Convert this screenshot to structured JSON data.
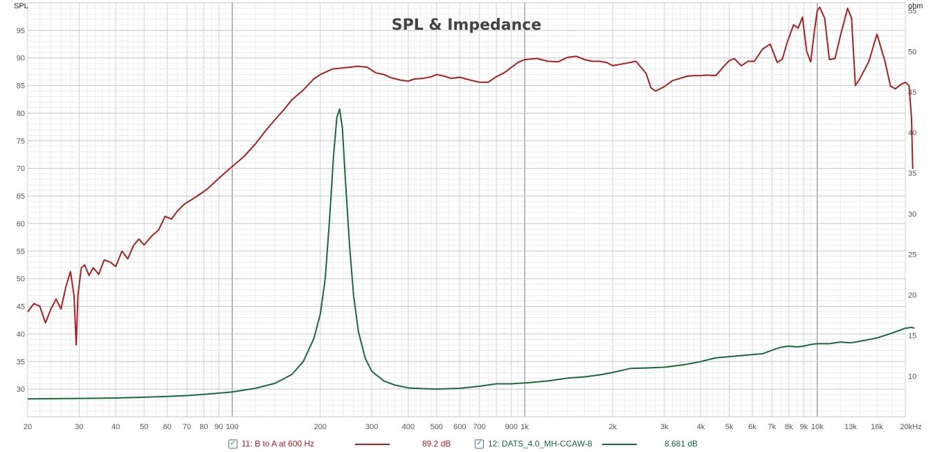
{
  "chart_data": {
    "type": "line",
    "title": "SPL & Impedance",
    "x_scale": "log",
    "xlim": [
      20,
      20000
    ],
    "x_tick_labels": [
      {
        "v": 20,
        "t": "20"
      },
      {
        "v": 30,
        "t": "30"
      },
      {
        "v": 40,
        "t": "40"
      },
      {
        "v": 50,
        "t": "50"
      },
      {
        "v": 60,
        "t": "60"
      },
      {
        "v": 70,
        "t": "70"
      },
      {
        "v": 80,
        "t": "80"
      },
      {
        "v": 90,
        "t": "90"
      },
      {
        "v": 100,
        "t": "100"
      },
      {
        "v": 200,
        "t": "200"
      },
      {
        "v": 300,
        "t": "300"
      },
      {
        "v": 400,
        "t": "400"
      },
      {
        "v": 500,
        "t": "500"
      },
      {
        "v": 600,
        "t": "600"
      },
      {
        "v": 700,
        "t": "700"
      },
      {
        "v": 900,
        "t": "900"
      },
      {
        "v": 1000,
        "t": "1k"
      },
      {
        "v": 2000,
        "t": "2k"
      },
      {
        "v": 3000,
        "t": "3k"
      },
      {
        "v": 4000,
        "t": "4k"
      },
      {
        "v": 5000,
        "t": "5k"
      },
      {
        "v": 6000,
        "t": "6k"
      },
      {
        "v": 7000,
        "t": "7k"
      },
      {
        "v": 8000,
        "t": "8k"
      },
      {
        "v": 9000,
        "t": "9k"
      },
      {
        "v": 10000,
        "t": "10k"
      },
      {
        "v": 13000,
        "t": "13k"
      },
      {
        "v": 16000,
        "t": "16k"
      },
      {
        "v": 20000,
        "t": "20kHz"
      }
    ],
    "y_left": {
      "label": "SPL",
      "lim": [
        25,
        100
      ],
      "ticks": [
        30,
        35,
        40,
        45,
        50,
        55,
        60,
        65,
        70,
        75,
        80,
        85,
        90,
        95
      ]
    },
    "y_right": {
      "label": "ohm",
      "lim": [
        5,
        56
      ],
      "ticks": [
        10,
        15,
        20,
        25,
        30,
        35,
        40,
        45,
        50,
        55
      ]
    },
    "grid": true,
    "legend_position": "bottom",
    "series": [
      {
        "name": "11: B to A at 600 Hz",
        "axis": "left",
        "color": "#b01c1c",
        "legend_value": "89.2 dB",
        "points": [
          [
            20,
            44
          ],
          [
            21,
            45.5
          ],
          [
            22,
            45
          ],
          [
            23,
            42
          ],
          [
            24,
            44.5
          ],
          [
            25,
            46.3
          ],
          [
            26,
            44.5
          ],
          [
            27,
            48.5
          ],
          [
            28,
            51.3
          ],
          [
            28.8,
            47
          ],
          [
            29.3,
            38
          ],
          [
            29.7,
            47
          ],
          [
            30.5,
            52
          ],
          [
            31.3,
            52.5
          ],
          [
            32.4,
            50.6
          ],
          [
            33.5,
            52
          ],
          [
            35,
            50.8
          ],
          [
            36.5,
            53.4
          ],
          [
            38.3,
            53
          ],
          [
            40,
            52.2
          ],
          [
            42,
            55
          ],
          [
            44,
            53.6
          ],
          [
            46,
            56
          ],
          [
            48,
            57.2
          ],
          [
            50,
            56.1
          ],
          [
            53,
            57.7
          ],
          [
            56,
            58.8
          ],
          [
            59,
            61.3
          ],
          [
            62,
            60.8
          ],
          [
            65,
            62.3
          ],
          [
            69,
            63.6
          ],
          [
            73,
            64.4
          ],
          [
            77,
            65.2
          ],
          [
            82,
            66.2
          ],
          [
            88,
            67.7
          ],
          [
            95,
            69.3
          ],
          [
            100,
            70.3
          ],
          [
            110,
            72.2
          ],
          [
            120,
            74.4
          ],
          [
            130,
            76.8
          ],
          [
            140,
            78.8
          ],
          [
            150,
            80.6
          ],
          [
            160,
            82.4
          ],
          [
            175,
            84.2
          ],
          [
            190,
            86.2
          ],
          [
            200,
            87
          ],
          [
            220,
            88
          ],
          [
            250,
            88.3
          ],
          [
            270,
            88.5
          ],
          [
            290,
            88.3
          ],
          [
            310,
            87.3
          ],
          [
            330,
            87
          ],
          [
            350,
            86.4
          ],
          [
            375,
            86
          ],
          [
            400,
            85.8
          ],
          [
            420,
            86.2
          ],
          [
            450,
            86.3
          ],
          [
            480,
            86.6
          ],
          [
            500,
            87
          ],
          [
            530,
            86.7
          ],
          [
            560,
            86.3
          ],
          [
            600,
            86.5
          ],
          [
            650,
            86
          ],
          [
            700,
            85.6
          ],
          [
            750,
            85.6
          ],
          [
            800,
            86.6
          ],
          [
            850,
            87.3
          ],
          [
            900,
            88.3
          ],
          [
            950,
            89.2
          ],
          [
            1000,
            89.7
          ],
          [
            1100,
            89.9
          ],
          [
            1200,
            89.4
          ],
          [
            1300,
            89.3
          ],
          [
            1400,
            90.1
          ],
          [
            1500,
            90.3
          ],
          [
            1600,
            89.7
          ],
          [
            1700,
            89.4
          ],
          [
            1800,
            89.4
          ],
          [
            1900,
            89.2
          ],
          [
            2000,
            88.6
          ],
          [
            2200,
            89
          ],
          [
            2400,
            89.4
          ],
          [
            2600,
            87.2
          ],
          [
            2700,
            84.6
          ],
          [
            2800,
            84
          ],
          [
            3000,
            84.8
          ],
          [
            3200,
            85.9
          ],
          [
            3400,
            86.3
          ],
          [
            3600,
            86.7
          ],
          [
            3800,
            86.8
          ],
          [
            4000,
            86.8
          ],
          [
            4200,
            86.9
          ],
          [
            4500,
            86.8
          ],
          [
            4800,
            88.5
          ],
          [
            5000,
            89.5
          ],
          [
            5200,
            89.9
          ],
          [
            5500,
            88.6
          ],
          [
            5800,
            89.4
          ],
          [
            6100,
            89.4
          ],
          [
            6500,
            91.6
          ],
          [
            6900,
            92.5
          ],
          [
            7300,
            89.2
          ],
          [
            7600,
            89.8
          ],
          [
            7900,
            92.9
          ],
          [
            8300,
            96
          ],
          [
            8600,
            95.4
          ],
          [
            8900,
            97.4
          ],
          [
            9200,
            91.2
          ],
          [
            9500,
            89.3
          ],
          [
            9800,
            95.3
          ],
          [
            10000,
            98.6
          ],
          [
            10200,
            99.2
          ],
          [
            10600,
            97.2
          ],
          [
            11000,
            89.7
          ],
          [
            11500,
            89.9
          ],
          [
            12000,
            94
          ],
          [
            12700,
            99
          ],
          [
            13100,
            97.2
          ],
          [
            13500,
            85
          ],
          [
            14000,
            86.3
          ],
          [
            15000,
            89.3
          ],
          [
            16000,
            94.3
          ],
          [
            17000,
            89.6
          ],
          [
            17800,
            84.9
          ],
          [
            18500,
            84.4
          ],
          [
            19200,
            85.1
          ],
          [
            20000,
            85.6
          ],
          [
            20600,
            85
          ],
          [
            21000,
            79
          ],
          [
            21200,
            69.9
          ]
        ]
      },
      {
        "name": "12: DATS_4.0_MH-CCAW-8",
        "axis": "right",
        "color": "#146b3a",
        "legend_value": "8.681 dB",
        "points": [
          [
            20,
            7.2
          ],
          [
            30,
            7.25
          ],
          [
            40,
            7.3
          ],
          [
            50,
            7.4
          ],
          [
            60,
            7.5
          ],
          [
            70,
            7.6
          ],
          [
            80,
            7.75
          ],
          [
            90,
            7.9
          ],
          [
            100,
            8.05
          ],
          [
            120,
            8.5
          ],
          [
            140,
            9.1
          ],
          [
            160,
            10.2
          ],
          [
            175,
            11.8
          ],
          [
            190,
            14.6
          ],
          [
            200,
            17.6
          ],
          [
            208,
            22
          ],
          [
            215,
            29
          ],
          [
            222,
            37
          ],
          [
            228,
            41.9
          ],
          [
            233,
            42.9
          ],
          [
            238,
            40.6
          ],
          [
            245,
            33
          ],
          [
            252,
            26
          ],
          [
            260,
            20
          ],
          [
            270,
            15.5
          ],
          [
            285,
            12.2
          ],
          [
            300,
            10.6
          ],
          [
            330,
            9.4
          ],
          [
            360,
            8.9
          ],
          [
            400,
            8.55
          ],
          [
            450,
            8.45
          ],
          [
            500,
            8.4
          ],
          [
            550,
            8.45
          ],
          [
            600,
            8.5
          ],
          [
            700,
            8.75
          ],
          [
            800,
            9.05
          ],
          [
            900,
            9.05
          ],
          [
            1000,
            9.15
          ],
          [
            1200,
            9.4
          ],
          [
            1400,
            9.75
          ],
          [
            1600,
            9.9
          ],
          [
            1800,
            10.15
          ],
          [
            2000,
            10.45
          ],
          [
            2300,
            10.95
          ],
          [
            2600,
            11.0
          ],
          [
            3000,
            11.1
          ],
          [
            3500,
            11.4
          ],
          [
            4000,
            11.8
          ],
          [
            4500,
            12.25
          ],
          [
            5000,
            12.4
          ],
          [
            6000,
            12.65
          ],
          [
            6500,
            12.75
          ],
          [
            7000,
            13.2
          ],
          [
            7500,
            13.55
          ],
          [
            8000,
            13.7
          ],
          [
            8500,
            13.6
          ],
          [
            9000,
            13.7
          ],
          [
            9500,
            13.9
          ],
          [
            10000,
            14.0
          ],
          [
            11000,
            14.0
          ],
          [
            12000,
            14.2
          ],
          [
            13000,
            14.1
          ],
          [
            14000,
            14.3
          ],
          [
            16000,
            14.7
          ],
          [
            18000,
            15.3
          ],
          [
            20000,
            15.9
          ],
          [
            21000,
            16.0
          ],
          [
            21500,
            15.9
          ]
        ]
      }
    ]
  }
}
